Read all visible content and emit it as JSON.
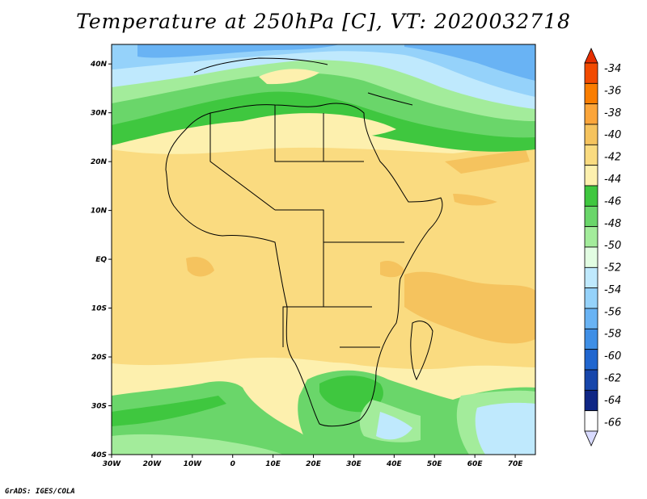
{
  "title": "Temperature at 250hPa [C], VT: 2020032718",
  "footer": "GrADS: IGES/COLA",
  "map": {
    "lon_labels": [
      "30W",
      "20W",
      "10W",
      "0",
      "10E",
      "20E",
      "30E",
      "40E",
      "50E",
      "60E",
      "70E"
    ],
    "lat_labels": [
      "40N",
      "30N",
      "20N",
      "10N",
      "EQ",
      "10S",
      "20S",
      "30S",
      "40S"
    ],
    "lon_range": [
      -30,
      75
    ],
    "lat_range": [
      -40,
      44
    ]
  },
  "colorbar": {
    "labels": [
      "-34",
      "-36",
      "-38",
      "-40",
      "-42",
      "-44",
      "-46",
      "-48",
      "-50",
      "-52",
      "-54",
      "-56",
      "-58",
      "-60",
      "-62",
      "-64",
      "-66"
    ],
    "colors": [
      "#f24a00",
      "#fa7d00",
      "#fba53a",
      "#f5c35e",
      "#fadb80",
      "#fdf0ae",
      "#3fc73f",
      "#6ad66a",
      "#a3ec9b",
      "#e2fde2",
      "#bfe9fd",
      "#95d2fa",
      "#69b3f4",
      "#3f8fe6",
      "#2066cf",
      "#1746ab",
      "#0f2685",
      "#ffffff"
    ],
    "arrow_top_color": "#e62e00",
    "arrow_bottom_color": "#d9dbff"
  }
}
